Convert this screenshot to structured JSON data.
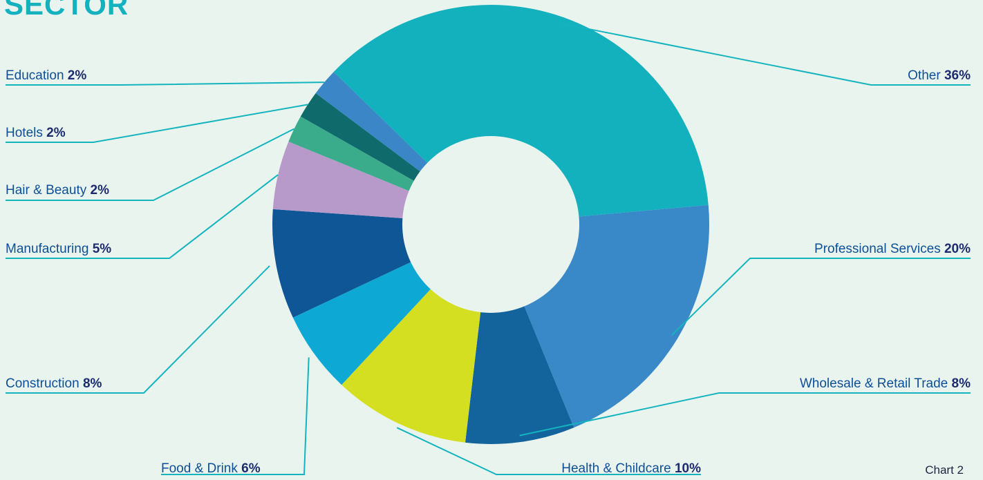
{
  "title": "SECTOR",
  "caption": "Chart 2",
  "chart_data": {
    "type": "pie",
    "title": "SECTOR",
    "slices": [
      {
        "name": "Other",
        "value": 36,
        "label": "Other ",
        "value_label": "36%",
        "color": "#13b1bd"
      },
      {
        "name": "Professional Services",
        "value": 20,
        "label": "Professional Services ",
        "value_label": "20%",
        "color": "#3989c8"
      },
      {
        "name": "Wholesale & Retail Trade",
        "value": 8,
        "label": "Wholesale & Retail Trade ",
        "value_label": "8%",
        "color": "#13649c"
      },
      {
        "name": "Health & Childcare",
        "value": 10,
        "label": "Health & Childcare ",
        "value_label": "10%",
        "color": "#d5df22"
      },
      {
        "name": "Food & Drink",
        "value": 6,
        "label": "Food & Drink ",
        "value_label": "6%",
        "color": "#0ea8d4"
      },
      {
        "name": "Construction",
        "value": 8,
        "label": "Construction ",
        "value_label": "8%",
        "color": "#0f5697"
      },
      {
        "name": "Manufacturing",
        "value": 5,
        "label": "Manufacturing ",
        "value_label": "5%",
        "color": "#b79ac9"
      },
      {
        "name": "Hair & Beauty",
        "value": 2,
        "label": "Hair & Beauty ",
        "value_label": "2%",
        "color": "#3aab8b"
      },
      {
        "name": "Hotels",
        "value": 2,
        "label": "Hotels ",
        "value_label": "2%",
        "color": "#0e6a6b"
      },
      {
        "name": "Education",
        "value": 2,
        "label": "Education ",
        "value_label": "2%",
        "color": "#3a86c6"
      }
    ],
    "leader_color": "#14b4bf",
    "center_color": "#eaf4ee"
  }
}
